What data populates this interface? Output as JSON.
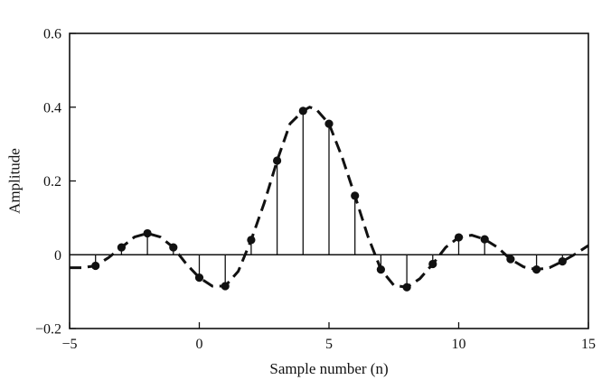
{
  "chart_data": {
    "type": "stem",
    "xlabel": "Sample number (n)",
    "ylabel": "Amplitude",
    "xlim": [
      -5,
      15
    ],
    "ylim": [
      -0.2,
      0.6
    ],
    "xticks": [
      -5,
      0,
      5,
      10,
      15
    ],
    "xtick_labels": [
      "−5",
      "0",
      "5",
      "10",
      "15"
    ],
    "yticks": [
      -0.2,
      0,
      0.2,
      0.4,
      0.6
    ],
    "ytick_labels": [
      "−0.2",
      "0",
      "0.2",
      "0.4",
      "0.6"
    ],
    "grid": false,
    "baseline": 0,
    "stems": {
      "n": [
        -4,
        -3,
        -2,
        -1,
        0,
        1,
        2,
        3,
        4,
        5,
        6,
        7,
        8,
        9,
        10,
        11,
        12,
        13,
        14
      ],
      "values": [
        -0.03,
        0.02,
        0.058,
        0.02,
        -0.062,
        -0.085,
        0.04,
        0.255,
        0.39,
        0.355,
        0.16,
        -0.04,
        -0.088,
        -0.025,
        0.047,
        0.042,
        -0.012,
        -0.04,
        -0.018
      ]
    },
    "envelope": {
      "style": "dashed",
      "x": [
        -5,
        -4.5,
        -4,
        -3.5,
        -3,
        -2.5,
        -2,
        -1.5,
        -1,
        -0.5,
        0,
        0.5,
        1,
        1.5,
        2,
        2.5,
        3,
        3.5,
        4,
        4.25,
        4.5,
        5,
        5.5,
        6,
        6.5,
        7,
        7.5,
        8,
        8.5,
        9,
        9.5,
        10,
        10.5,
        11,
        11.5,
        12,
        12.5,
        13,
        13.5,
        14,
        14.5,
        15
      ],
      "y": [
        -0.035,
        -0.035,
        -0.03,
        -0.008,
        0.02,
        0.048,
        0.058,
        0.048,
        0.02,
        -0.025,
        -0.062,
        -0.085,
        -0.085,
        -0.045,
        0.04,
        0.14,
        0.255,
        0.355,
        0.39,
        0.4,
        0.395,
        0.355,
        0.265,
        0.16,
        0.05,
        -0.04,
        -0.083,
        -0.088,
        -0.065,
        -0.025,
        0.02,
        0.047,
        0.053,
        0.042,
        0.02,
        -0.012,
        -0.033,
        -0.04,
        -0.035,
        -0.018,
        0.002,
        0.025
      ]
    }
  }
}
